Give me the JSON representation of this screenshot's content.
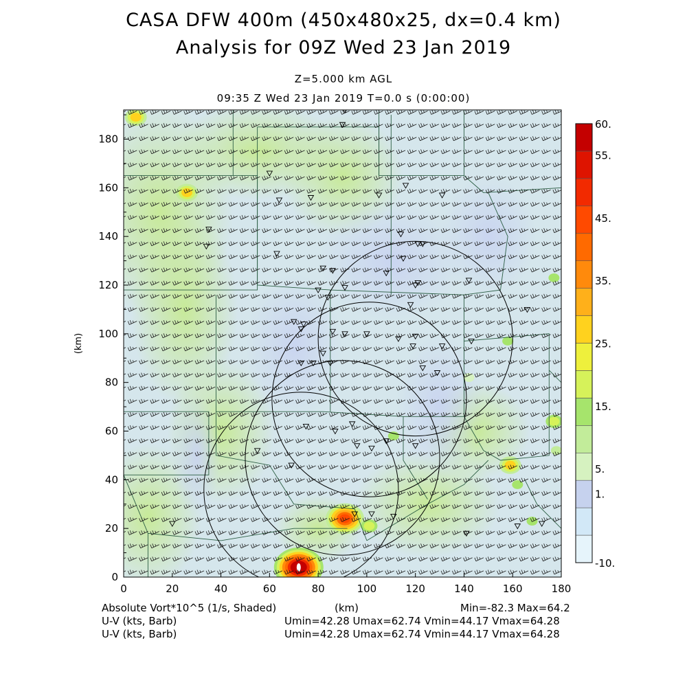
{
  "header": {
    "line1": "CASA DFW 400m (450x480x25, dx=0.4 km)",
    "line2": "Analysis for 09Z Wed 23 Jan 2019",
    "line3": "Z=5.000 km AGL",
    "line4": "09:35 Z Wed 23 Jan 2019    T=0.0 s (0:00:00)"
  },
  "footer": {
    "field1": "Absolute Vort*10^5 (1/s, Shaded)",
    "xunit": "(km)",
    "minmax": "Min=-82.3 Max=64.2",
    "wind1": "U-V (kts, Barb)",
    "wind1_stats": "Umin=42.28 Umax=62.74 Vmin=44.17 Vmax=64.28",
    "wind2": "U-V (kts, Barb)",
    "wind2_stats": "Umin=42.28 Umax=62.74 Vmin=44.17 Vmax=64.28"
  },
  "chart_data": {
    "type": "heatmap",
    "xlabel": "(km)",
    "ylabel": "(km)",
    "xlim": [
      0,
      180
    ],
    "ylim": [
      0,
      192
    ],
    "xticks": [
      0,
      20,
      40,
      60,
      80,
      100,
      120,
      140,
      160,
      180
    ],
    "yticks": [
      0,
      20,
      40,
      60,
      80,
      100,
      120,
      140,
      160,
      180
    ],
    "colorbar": {
      "levels": [
        -10,
        1,
        5,
        15,
        25,
        35,
        45,
        55,
        60
      ],
      "labels": [
        "60.",
        "55.",
        "45.",
        "35.",
        "25.",
        "15.",
        "5.",
        "1.",
        "-10."
      ],
      "colors": [
        "#e6f4fb",
        "#d2e8f7",
        "#c6d2ee",
        "#d6f2c0",
        "#c2ec9a",
        "#a6e46c",
        "#d6f25a",
        "#eef03c",
        "#ffd21e",
        "#ffb01a",
        "#ff8a0c",
        "#ff6a00",
        "#ff4a00",
        "#f22a00",
        "#de1400",
        "#c40000"
      ]
    },
    "radar_rings": [
      {
        "cx": 73,
        "cy": 36,
        "r": 40
      },
      {
        "cx": 90,
        "cy": 49,
        "r": 40
      },
      {
        "cx": 101,
        "cy": 73,
        "r": 40
      },
      {
        "cx": 120,
        "cy": 98,
        "r": 40
      }
    ],
    "vorticity_maxima": [
      {
        "x": 72,
        "y": 4,
        "value": 64.2
      },
      {
        "x": 91,
        "y": 24,
        "value": 45
      },
      {
        "x": 101,
        "y": 21,
        "value": 20
      },
      {
        "x": 26,
        "y": 158,
        "value": 25
      },
      {
        "x": 5,
        "y": 189,
        "value": 25
      },
      {
        "x": 159,
        "y": 46,
        "value": 25
      },
      {
        "x": 177,
        "y": 64,
        "value": 20
      },
      {
        "x": 162,
        "y": 38,
        "value": 15
      },
      {
        "x": 168,
        "y": 23,
        "value": 15
      },
      {
        "x": 111,
        "y": 58,
        "value": 15
      },
      {
        "x": 177,
        "y": 123,
        "value": 15
      },
      {
        "x": 158,
        "y": 97,
        "value": 15
      },
      {
        "x": 178,
        "y": 52,
        "value": 10
      },
      {
        "x": 142,
        "y": 82,
        "value": 5
      }
    ]
  }
}
